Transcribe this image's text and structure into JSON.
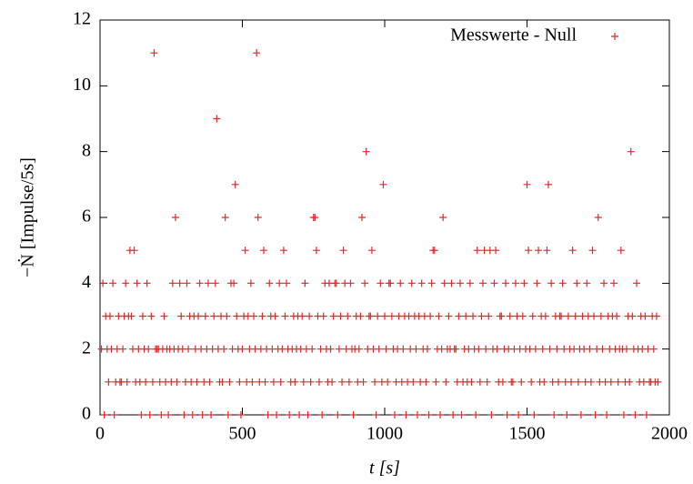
{
  "chart_data": {
    "type": "scatter",
    "x_label": "t [s]",
    "y_label": "−Ṅ [Impulse/5s]",
    "xlim": [
      0,
      2000
    ],
    "xticks": [
      0,
      500,
      1000,
      1500,
      2000
    ],
    "ylim": [
      0,
      12
    ],
    "yticks": [
      0,
      2,
      4,
      6,
      8,
      10,
      12
    ],
    "legend": "top-right",
    "x": [
      5,
      10,
      15,
      20,
      25,
      30,
      35,
      40,
      45,
      50,
      55,
      60,
      65,
      70,
      75,
      80,
      85,
      90,
      95,
      100,
      105,
      110,
      115,
      120,
      125,
      130,
      135,
      140,
      145,
      150,
      155,
      160,
      165,
      170,
      175,
      180,
      185,
      190,
      195,
      200,
      205,
      210,
      215,
      220,
      225,
      230,
      235,
      240,
      245,
      250,
      255,
      260,
      265,
      270,
      275,
      280,
      285,
      290,
      295,
      300,
      305,
      310,
      315,
      320,
      325,
      330,
      335,
      340,
      345,
      350,
      355,
      360,
      365,
      370,
      375,
      380,
      385,
      390,
      395,
      400,
      405,
      410,
      415,
      420,
      425,
      430,
      435,
      440,
      445,
      450,
      455,
      460,
      465,
      470,
      475,
      480,
      485,
      490,
      495,
      500,
      505,
      510,
      515,
      520,
      525,
      530,
      535,
      540,
      545,
      550,
      555,
      560,
      565,
      570,
      575,
      580,
      585,
      590,
      595,
      600,
      605,
      610,
      615,
      620,
      625,
      630,
      635,
      640,
      645,
      650,
      655,
      660,
      665,
      670,
      675,
      680,
      685,
      690,
      695,
      700,
      705,
      710,
      715,
      720,
      725,
      730,
      735,
      740,
      745,
      750,
      755,
      760,
      765,
      770,
      775,
      780,
      785,
      790,
      795,
      800,
      805,
      810,
      815,
      820,
      825,
      830,
      835,
      840,
      845,
      850,
      855,
      860,
      865,
      870,
      875,
      880,
      885,
      890,
      895,
      900,
      905,
      910,
      915,
      920,
      925,
      930,
      935,
      940,
      945,
      950,
      955,
      960,
      965,
      970,
      975,
      980,
      985,
      990,
      995,
      1000,
      1005,
      1010,
      1015,
      1020,
      1025,
      1030,
      1035,
      1040,
      1045,
      1050,
      1055,
      1060,
      1065,
      1070,
      1075,
      1080,
      1085,
      1090,
      1095,
      1100,
      1105,
      1110,
      1115,
      1120,
      1125,
      1130,
      1135,
      1140,
      1145,
      1150,
      1155,
      1160,
      1165,
      1170,
      1175,
      1180,
      1185,
      1190,
      1195,
      1200,
      1205,
      1210,
      1215,
      1220,
      1225,
      1230,
      1235,
      1240,
      1245,
      1250,
      1255,
      1260,
      1265,
      1270,
      1275,
      1280,
      1285,
      1290,
      1295,
      1300,
      1305,
      1310,
      1315,
      1320,
      1325,
      1330,
      1335,
      1340,
      1345,
      1350,
      1355,
      1360,
      1365,
      1370,
      1375,
      1380,
      1385,
      1390,
      1395,
      1400,
      1405,
      1410,
      1415,
      1420,
      1425,
      1430,
      1435,
      1440,
      1445,
      1450,
      1455,
      1460,
      1465,
      1470,
      1475,
      1480,
      1485,
      1490,
      1495,
      1500,
      1505,
      1510,
      1515,
      1520,
      1525,
      1530,
      1535,
      1540,
      1545,
      1550,
      1555,
      1560,
      1565,
      1570,
      1575,
      1580,
      1585,
      1590,
      1595,
      1600,
      1605,
      1610,
      1615,
      1620,
      1625,
      1630,
      1635,
      1640,
      1645,
      1650,
      1655,
      1660,
      1665,
      1670,
      1675,
      1680,
      1685,
      1690,
      1695,
      1700,
      1705,
      1710,
      1715,
      1720,
      1725,
      1730,
      1735,
      1740,
      1745,
      1750,
      1755,
      1760,
      1765,
      1770,
      1775,
      1780,
      1785,
      1790,
      1795,
      1800,
      1805,
      1810,
      1815,
      1820,
      1825,
      1830,
      1835,
      1840,
      1845,
      1850,
      1855,
      1860,
      1865,
      1870,
      1875,
      1880,
      1885,
      1890,
      1895,
      1900,
      1905,
      1910,
      1915,
      1920,
      1925,
      1930,
      1935,
      1940,
      1945,
      1950,
      1955,
      1960
    ],
    "series": [
      {
        "name": "Messwerte - Null",
        "color": "#e8262b",
        "values": [
          2,
          4,
          0,
          3,
          2,
          1,
          3,
          2,
          4,
          0,
          1,
          2,
          3,
          1,
          1,
          2,
          3,
          4,
          1,
          3,
          5,
          3,
          2,
          5,
          1,
          4,
          2,
          1,
          0,
          3,
          2,
          1,
          4,
          2,
          0,
          3,
          1,
          11,
          2,
          2,
          2,
          1,
          0,
          2,
          3,
          1,
          2,
          0,
          2,
          1,
          4,
          2,
          6,
          1,
          2,
          4,
          3,
          2,
          0,
          1,
          4,
          2,
          3,
          1,
          0,
          3,
          2,
          1,
          3,
          4,
          2,
          0,
          1,
          3,
          2,
          4,
          1,
          0,
          2,
          3,
          4,
          9,
          2,
          1,
          3,
          1,
          2,
          6,
          3,
          0,
          1,
          4,
          2,
          4,
          7,
          3,
          2,
          1,
          0,
          2,
          3,
          5,
          1,
          3,
          2,
          4,
          1,
          3,
          2,
          11,
          6,
          1,
          2,
          3,
          5,
          1,
          2,
          0,
          4,
          3,
          2,
          1,
          3,
          0,
          2,
          4,
          1,
          2,
          5,
          3,
          4,
          2,
          0,
          1,
          2,
          3,
          1,
          2,
          3,
          0,
          2,
          3,
          1,
          4,
          2,
          0,
          3,
          1,
          2,
          6,
          6,
          5,
          3,
          1,
          2,
          0,
          3,
          4,
          2,
          1,
          4,
          2,
          1,
          3,
          4,
          4,
          0,
          2,
          3,
          1,
          5,
          4,
          2,
          3,
          1,
          4,
          2,
          0,
          2,
          3,
          1,
          2,
          3,
          6,
          1,
          4,
          8,
          2,
          3,
          3,
          5,
          2,
          1,
          0,
          3,
          2,
          4,
          1,
          7,
          3,
          2,
          1,
          4,
          4,
          3,
          2,
          0,
          1,
          2,
          3,
          4,
          1,
          2,
          3,
          0,
          1,
          3,
          2,
          4,
          1,
          3,
          2,
          0,
          3,
          1,
          4,
          2,
          3,
          1,
          2,
          0,
          3,
          4,
          5,
          5,
          1,
          2,
          3,
          0,
          2,
          6,
          4,
          1,
          2,
          3,
          2,
          4,
          0,
          2,
          2,
          1,
          3,
          4,
          0,
          1,
          2,
          3,
          1,
          2,
          4,
          1,
          3,
          2,
          0,
          5,
          2,
          1,
          3,
          4,
          5,
          2,
          1,
          3,
          5,
          0,
          2,
          4,
          5,
          2,
          1,
          3,
          3,
          1,
          2,
          4,
          0,
          2,
          3,
          1,
          1,
          2,
          4,
          3,
          0,
          2,
          1,
          3,
          4,
          2,
          7,
          5,
          2,
          1,
          3,
          0,
          2,
          4,
          5,
          1,
          3,
          2,
          1,
          3,
          5,
          7,
          2,
          4,
          1,
          0,
          3,
          2,
          1,
          3,
          3,
          4,
          2,
          1,
          0,
          3,
          2,
          1,
          5,
          2,
          3,
          4,
          1,
          2,
          0,
          3,
          2,
          1,
          4,
          3,
          2,
          1,
          5,
          3,
          0,
          2,
          6,
          1,
          3,
          2,
          4,
          1,
          0,
          3,
          2,
          1,
          3,
          4,
          2,
          3,
          1,
          2,
          5,
          2,
          0,
          1,
          2,
          3,
          1,
          8,
          3,
          2,
          0,
          4,
          2,
          1,
          3,
          2,
          1,
          3,
          0,
          2,
          1,
          1,
          3,
          2,
          1,
          3,
          1
        ]
      }
    ]
  }
}
